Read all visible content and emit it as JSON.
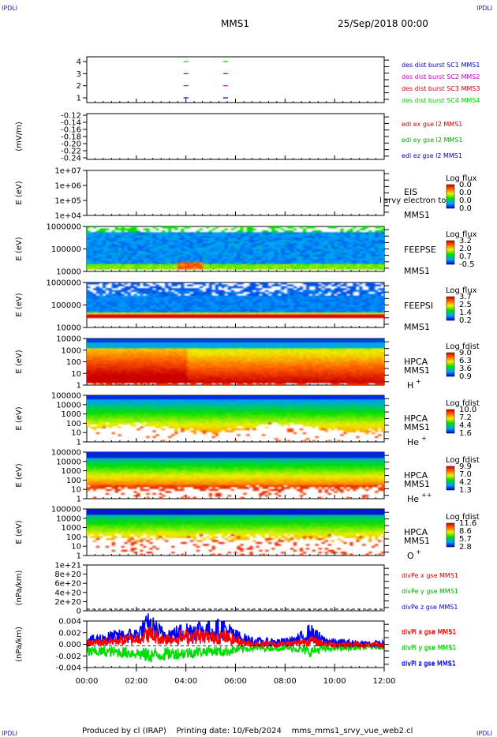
{
  "corner_label": "IPDLI",
  "header": {
    "mission": "MMS1",
    "datetime": "25/Sep/2018 00:00"
  },
  "footer": "Produced by cl (IRAP)    Printing date: 10/Feb/2024    mms_mms1_srvy_vue_web2.cl",
  "time_axis": {
    "start": "00:00",
    "end": "12:00",
    "ticks": [
      "00:00",
      "02:00",
      "04:00",
      "06:00",
      "08:00",
      "10:00",
      "12:00"
    ]
  },
  "chart_data": [
    {
      "type": "scatter",
      "ylabel": "",
      "yticks": [
        "1",
        "2",
        "3",
        "4"
      ],
      "series": [
        {
          "name": "des dist burst SC1 MMS1",
          "color": "#0000cc",
          "y": 1,
          "x": [
            4.0,
            5.6
          ]
        },
        {
          "name": "des dist burst SC2 MMS2",
          "color": "#cc00cc",
          "y": 2,
          "x": [
            4.0,
            5.6
          ]
        },
        {
          "name": "des dist burst SC3 MMS3",
          "color": "#cc0000",
          "y": 3,
          "x": [
            4.0,
            5.6
          ]
        },
        {
          "name": "des dist burst SC4 MMS4",
          "color": "#00cc00",
          "y": 4,
          "x": [
            4.0,
            5.6
          ]
        }
      ]
    },
    {
      "type": "line",
      "ylabel": "(mV/m)",
      "yticks": [
        "-0.12",
        "-0.14",
        "-0.16",
        "-0.18",
        "-0.20",
        "-0.22",
        "-0.24"
      ],
      "series": [
        {
          "name": "edi ex gse l2 MMS1",
          "color": "#cc0000",
          "values": []
        },
        {
          "name": "edi ey gse l2 MMS1",
          "color": "#00aa00",
          "values": []
        },
        {
          "name": "edi ez gse l2 MMS1",
          "color": "#0000cc",
          "values": []
        }
      ]
    },
    {
      "type": "heatmap",
      "ylabel": "E (eV)",
      "yticks": [
        "1e+07",
        "1e+06",
        "1e+05",
        "1e+04"
      ],
      "labels": [
        "EIS",
        "MMS1"
      ],
      "overlay_text": "l  srvy electron to",
      "colorbar": {
        "title": "Log flux",
        "ticks": [
          "0.0",
          "0.0",
          "0.0",
          "0.0"
        ]
      }
    },
    {
      "type": "heatmap",
      "ylabel": "E (eV)",
      "yticks": [
        "1000000",
        "100000",
        "10000"
      ],
      "labels": [
        "FEEPSE",
        "MMS1"
      ],
      "colorbar": {
        "title": "Log flux",
        "ticks": [
          "3.2",
          "2.0",
          "0.7",
          "-0.5"
        ]
      }
    },
    {
      "type": "heatmap",
      "ylabel": "E (eV)",
      "yticks": [
        "1000000",
        "100000",
        "10000"
      ],
      "labels": [
        "FEEPSI",
        "MMS1"
      ],
      "colorbar": {
        "title": "Log flux",
        "ticks": [
          "3.7",
          "2.5",
          "1.4",
          "0.2"
        ]
      }
    },
    {
      "type": "heatmap",
      "ylabel": "E (eV)",
      "yticks": [
        "10000",
        "1000",
        "100",
        "10",
        "1"
      ],
      "labels": [
        "HPCA",
        "MMS1"
      ],
      "species": "H",
      "charge": "+",
      "colorbar": {
        "title": "Log fdist",
        "ticks": [
          "9.0",
          "6.3",
          "3.6",
          "0.9"
        ]
      }
    },
    {
      "type": "heatmap",
      "ylabel": "E (eV)",
      "yticks": [
        "100000",
        "10000",
        "1000",
        "100",
        "10",
        "1"
      ],
      "labels": [
        "HPCA",
        "MMS1"
      ],
      "species": "He",
      "charge": "+",
      "colorbar": {
        "title": "Log fdist",
        "ticks": [
          "10.0",
          "7.2",
          "4.4",
          "1.6"
        ]
      }
    },
    {
      "type": "heatmap",
      "ylabel": "E (eV)",
      "yticks": [
        "100000",
        "10000",
        "1000",
        "100",
        "10",
        "1"
      ],
      "labels": [
        "HPCA",
        "MMS1"
      ],
      "species": "He",
      "charge": "++",
      "colorbar": {
        "title": "Log fdist",
        "ticks": [
          "9.9",
          "7.0",
          "4.2",
          "1.3"
        ]
      }
    },
    {
      "type": "heatmap",
      "ylabel": "E (eV)",
      "yticks": [
        "100000",
        "10000",
        "1000",
        "100",
        "10",
        "1"
      ],
      "labels": [
        "HPCA",
        "MMS1"
      ],
      "species": "O",
      "charge": "+",
      "colorbar": {
        "title": "Log fdist",
        "ticks": [
          "11.6",
          "8.6",
          "5.7",
          "2.8"
        ]
      }
    },
    {
      "type": "line",
      "ylabel": "(nPa/km)",
      "yticks": [
        "1e+21",
        "8e+20",
        "6e+20",
        "4e+20",
        "2e+20",
        "0"
      ],
      "ylim": [
        0,
        1e+21
      ],
      "series": [
        {
          "name": "divPe x gse MMS1",
          "color": "#cc0000",
          "values": [
            0
          ]
        },
        {
          "name": "divPe y gse MMS1",
          "color": "#00aa00",
          "values": [
            0
          ]
        },
        {
          "name": "divPe z gse MMS1",
          "color": "#0000cc",
          "values": [
            0
          ]
        }
      ]
    },
    {
      "type": "line",
      "ylabel": "(nPa/km)",
      "yticks": [
        "0.004",
        "0.002",
        "0.000",
        "-0.002",
        "-0.004"
      ],
      "ylim": [
        -0.0045,
        0.0052
      ],
      "x": [
        0,
        1,
        2,
        2.5,
        3,
        3.5,
        4,
        4.5,
        5,
        5.5,
        6,
        6.5,
        7,
        8,
        8.5,
        9,
        9.5,
        10,
        11,
        12
      ],
      "series": [
        {
          "name": "divPi x gse MMS1",
          "color": "#ff0000",
          "values": [
            0.0005,
            0.001,
            0.0015,
            0.0025,
            0.0015,
            0.0015,
            0.002,
            0.002,
            0.0018,
            0.002,
            0.0012,
            0.0005,
            0.0004,
            0.0004,
            0.0006,
            0.0012,
            0.0006,
            0.0003,
            0.0002,
            0.0001
          ]
        },
        {
          "name": "divPi y gse MMS1",
          "color": "#00dd00",
          "values": [
            -0.0012,
            -0.0012,
            -0.0015,
            -0.002,
            -0.0018,
            -0.0015,
            -0.0015,
            -0.0012,
            -0.001,
            -0.0012,
            -0.0008,
            -0.0005,
            -0.0004,
            -0.0004,
            -0.0006,
            -0.0012,
            -0.0006,
            -0.0004,
            -0.0003,
            -0.0002
          ]
        },
        {
          "name": "divPi z gse MMS1",
          "color": "#0000ff",
          "values": [
            0.001,
            0.0018,
            0.0022,
            0.0042,
            0.0025,
            0.0024,
            0.003,
            0.0034,
            0.003,
            0.0036,
            0.002,
            0.0012,
            0.0008,
            0.0008,
            0.0012,
            0.0028,
            0.0012,
            0.0007,
            0.0005,
            0.0004
          ]
        }
      ]
    }
  ]
}
